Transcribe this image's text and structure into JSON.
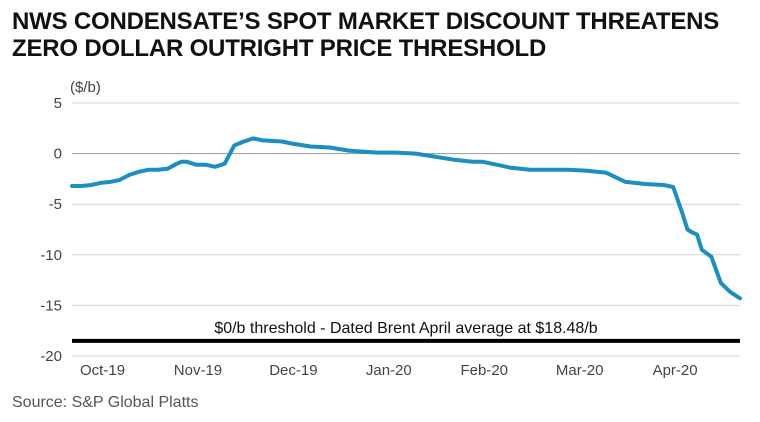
{
  "chart_data": {
    "type": "line",
    "title": [
      "NWS CONDENSATE’S SPOT MARKET DISCOUNT THREATENS",
      "ZERO DOLLAR OUTRIGHT PRICE THRESHOLD"
    ],
    "ylabel": "($/b)",
    "source": "Source: S&P Global Platts",
    "ylim": [
      -20,
      5
    ],
    "yticks": [
      5,
      0,
      -5,
      -10,
      -15,
      -20
    ],
    "xlim": [
      0,
      7
    ],
    "xtick_labels": [
      "Oct-19",
      "Nov-19",
      "Dec-19",
      "Jan-20",
      "Feb-20",
      "Mar-20",
      "Apr-20"
    ],
    "grid": true,
    "line_color": "#1a8fc0",
    "threshold": {
      "value": -18.5,
      "label": "$0/b threshold - Dated Brent April average at $18.48/b",
      "color": "#000000"
    },
    "series": [
      {
        "x": [
          0.0,
          0.1,
          0.2,
          0.3,
          0.4,
          0.5,
          0.6,
          0.7,
          0.8,
          0.9,
          1.0,
          1.1,
          1.15,
          1.2,
          1.3,
          1.4,
          1.5,
          1.6,
          1.7,
          1.8,
          1.9,
          2.0,
          2.2,
          2.3,
          2.5,
          2.7,
          2.9,
          3.2,
          3.4,
          3.6,
          3.8,
          4.0,
          4.2,
          4.25,
          4.3,
          4.5,
          4.6,
          4.8,
          5.0,
          5.2,
          5.4,
          5.6,
          5.8,
          5.9,
          6.0,
          6.2,
          6.3,
          6.4,
          6.45,
          6.5,
          6.55,
          6.6,
          6.7,
          6.8,
          6.9,
          7.0
        ],
        "y": [
          -3.2,
          -3.2,
          -3.1,
          -2.9,
          -2.8,
          -2.6,
          -2.1,
          -1.8,
          -1.6,
          -1.6,
          -1.5,
          -1.0,
          -0.8,
          -0.8,
          -1.1,
          -1.1,
          -1.3,
          -1.0,
          0.8,
          1.2,
          1.5,
          1.3,
          1.2,
          1.0,
          0.7,
          0.6,
          0.3,
          0.1,
          0.1,
          0.0,
          -0.3,
          -0.6,
          -0.8,
          -0.8,
          -0.8,
          -1.2,
          -1.4,
          -1.6,
          -1.6,
          -1.6,
          -1.7,
          -1.9,
          -2.8,
          -2.9,
          -3.0,
          -3.1,
          -3.3,
          -6.0,
          -7.5,
          -7.8,
          -8.0,
          -9.5,
          -10.2,
          -12.8,
          -13.7,
          -14.3
        ]
      }
    ]
  }
}
